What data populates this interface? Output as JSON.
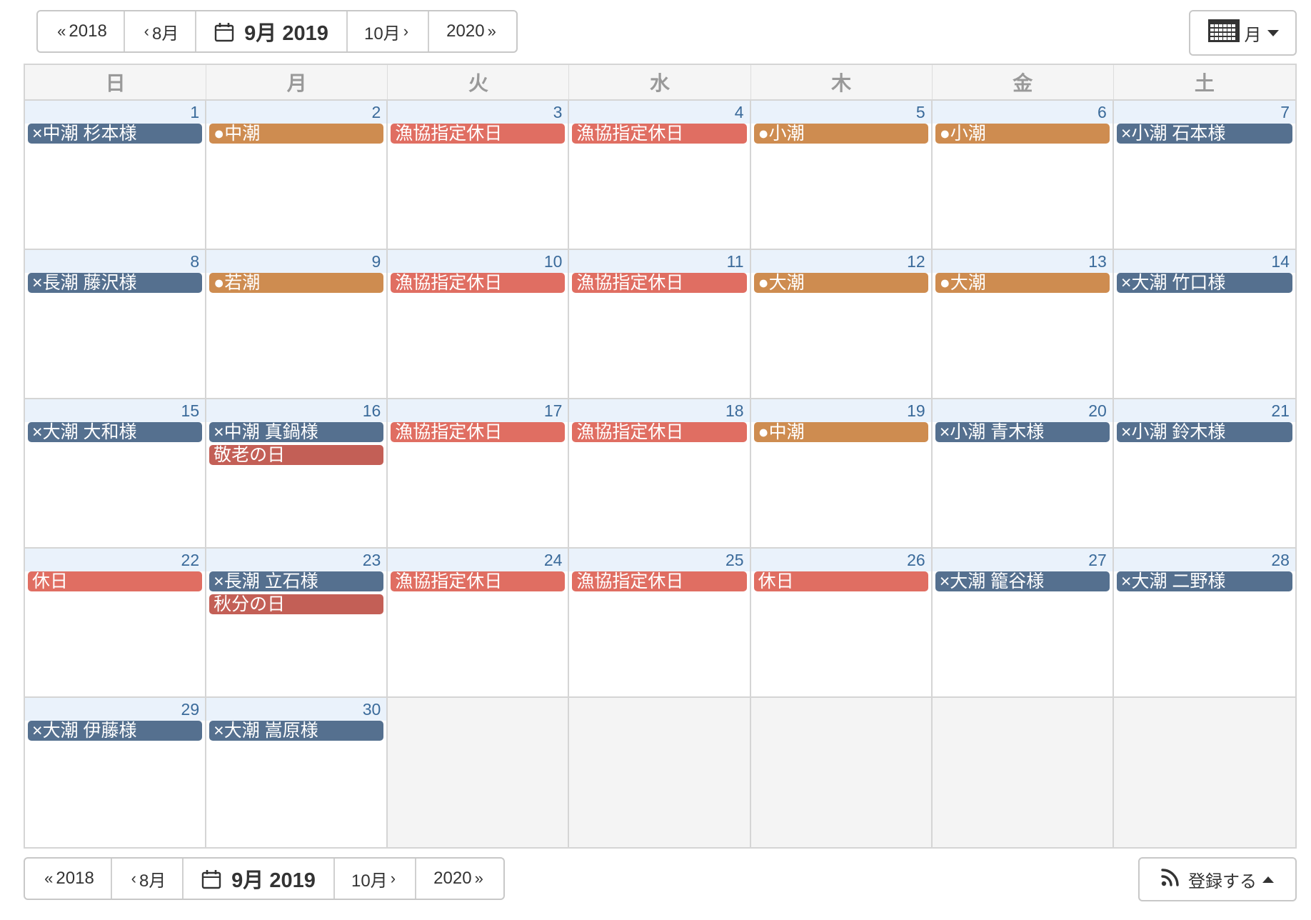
{
  "nav": {
    "prev_year": "2018",
    "prev_month": "8月",
    "current": "9月 2019",
    "next_month": "10月",
    "next_year": "2020"
  },
  "view": {
    "label": "月"
  },
  "subscribe": {
    "label": "登録する"
  },
  "weekdays": [
    "日",
    "月",
    "火",
    "水",
    "木",
    "金",
    "土"
  ],
  "colors": {
    "blue": "#55708f",
    "orange": "#ce8c50",
    "red": "#e06e62",
    "darkred": "#c35f56"
  },
  "weeks": [
    [
      {
        "day": "1",
        "events": [
          {
            "title": "×中潮 杉本様",
            "color": "blue"
          }
        ]
      },
      {
        "day": "2",
        "events": [
          {
            "title": "●中潮",
            "color": "orange"
          }
        ]
      },
      {
        "day": "3",
        "events": [
          {
            "title": "漁協指定休日",
            "color": "red"
          }
        ]
      },
      {
        "day": "4",
        "events": [
          {
            "title": "漁協指定休日",
            "color": "red"
          }
        ]
      },
      {
        "day": "5",
        "events": [
          {
            "title": "●小潮",
            "color": "orange"
          }
        ]
      },
      {
        "day": "6",
        "events": [
          {
            "title": "●小潮",
            "color": "orange"
          }
        ]
      },
      {
        "day": "7",
        "events": [
          {
            "title": "×小潮 石本様",
            "color": "blue"
          }
        ]
      }
    ],
    [
      {
        "day": "8",
        "events": [
          {
            "title": "×長潮 藤沢様",
            "color": "blue"
          }
        ]
      },
      {
        "day": "9",
        "events": [
          {
            "title": "●若潮",
            "color": "orange"
          }
        ]
      },
      {
        "day": "10",
        "events": [
          {
            "title": "漁協指定休日",
            "color": "red"
          }
        ]
      },
      {
        "day": "11",
        "events": [
          {
            "title": "漁協指定休日",
            "color": "red"
          }
        ]
      },
      {
        "day": "12",
        "events": [
          {
            "title": "●大潮",
            "color": "orange"
          }
        ]
      },
      {
        "day": "13",
        "events": [
          {
            "title": "●大潮",
            "color": "orange"
          }
        ]
      },
      {
        "day": "14",
        "events": [
          {
            "title": "×大潮 竹口様",
            "color": "blue"
          }
        ]
      }
    ],
    [
      {
        "day": "15",
        "events": [
          {
            "title": "×大潮 大和様",
            "color": "blue"
          }
        ]
      },
      {
        "day": "16",
        "events": [
          {
            "title": "×中潮 真鍋様",
            "color": "blue"
          },
          {
            "title": "敬老の日",
            "color": "darkred"
          }
        ]
      },
      {
        "day": "17",
        "events": [
          {
            "title": "漁協指定休日",
            "color": "red"
          }
        ]
      },
      {
        "day": "18",
        "events": [
          {
            "title": "漁協指定休日",
            "color": "red"
          }
        ]
      },
      {
        "day": "19",
        "events": [
          {
            "title": "●中潮",
            "color": "orange"
          }
        ]
      },
      {
        "day": "20",
        "events": [
          {
            "title": "×小潮 青木様",
            "color": "blue"
          }
        ]
      },
      {
        "day": "21",
        "events": [
          {
            "title": "×小潮 鈴木様",
            "color": "blue"
          }
        ]
      }
    ],
    [
      {
        "day": "22",
        "events": [
          {
            "title": "休日",
            "color": "red"
          }
        ]
      },
      {
        "day": "23",
        "events": [
          {
            "title": "×長潮 立石様",
            "color": "blue"
          },
          {
            "title": "秋分の日",
            "color": "darkred"
          }
        ]
      },
      {
        "day": "24",
        "events": [
          {
            "title": "漁協指定休日",
            "color": "red"
          }
        ]
      },
      {
        "day": "25",
        "events": [
          {
            "title": "漁協指定休日",
            "color": "red"
          }
        ]
      },
      {
        "day": "26",
        "events": [
          {
            "title": "休日",
            "color": "red"
          }
        ]
      },
      {
        "day": "27",
        "events": [
          {
            "title": "×大潮 籠谷様",
            "color": "blue"
          }
        ]
      },
      {
        "day": "28",
        "events": [
          {
            "title": "×大潮 二野様",
            "color": "blue"
          }
        ]
      }
    ],
    [
      {
        "day": "29",
        "events": [
          {
            "title": "×大潮 伊藤様",
            "color": "blue"
          }
        ]
      },
      {
        "day": "30",
        "events": [
          {
            "title": "×大潮 嵩原様",
            "color": "blue"
          }
        ]
      },
      {
        "day": "",
        "events": []
      },
      {
        "day": "",
        "events": []
      },
      {
        "day": "",
        "events": []
      },
      {
        "day": "",
        "events": []
      },
      {
        "day": "",
        "events": []
      }
    ]
  ]
}
